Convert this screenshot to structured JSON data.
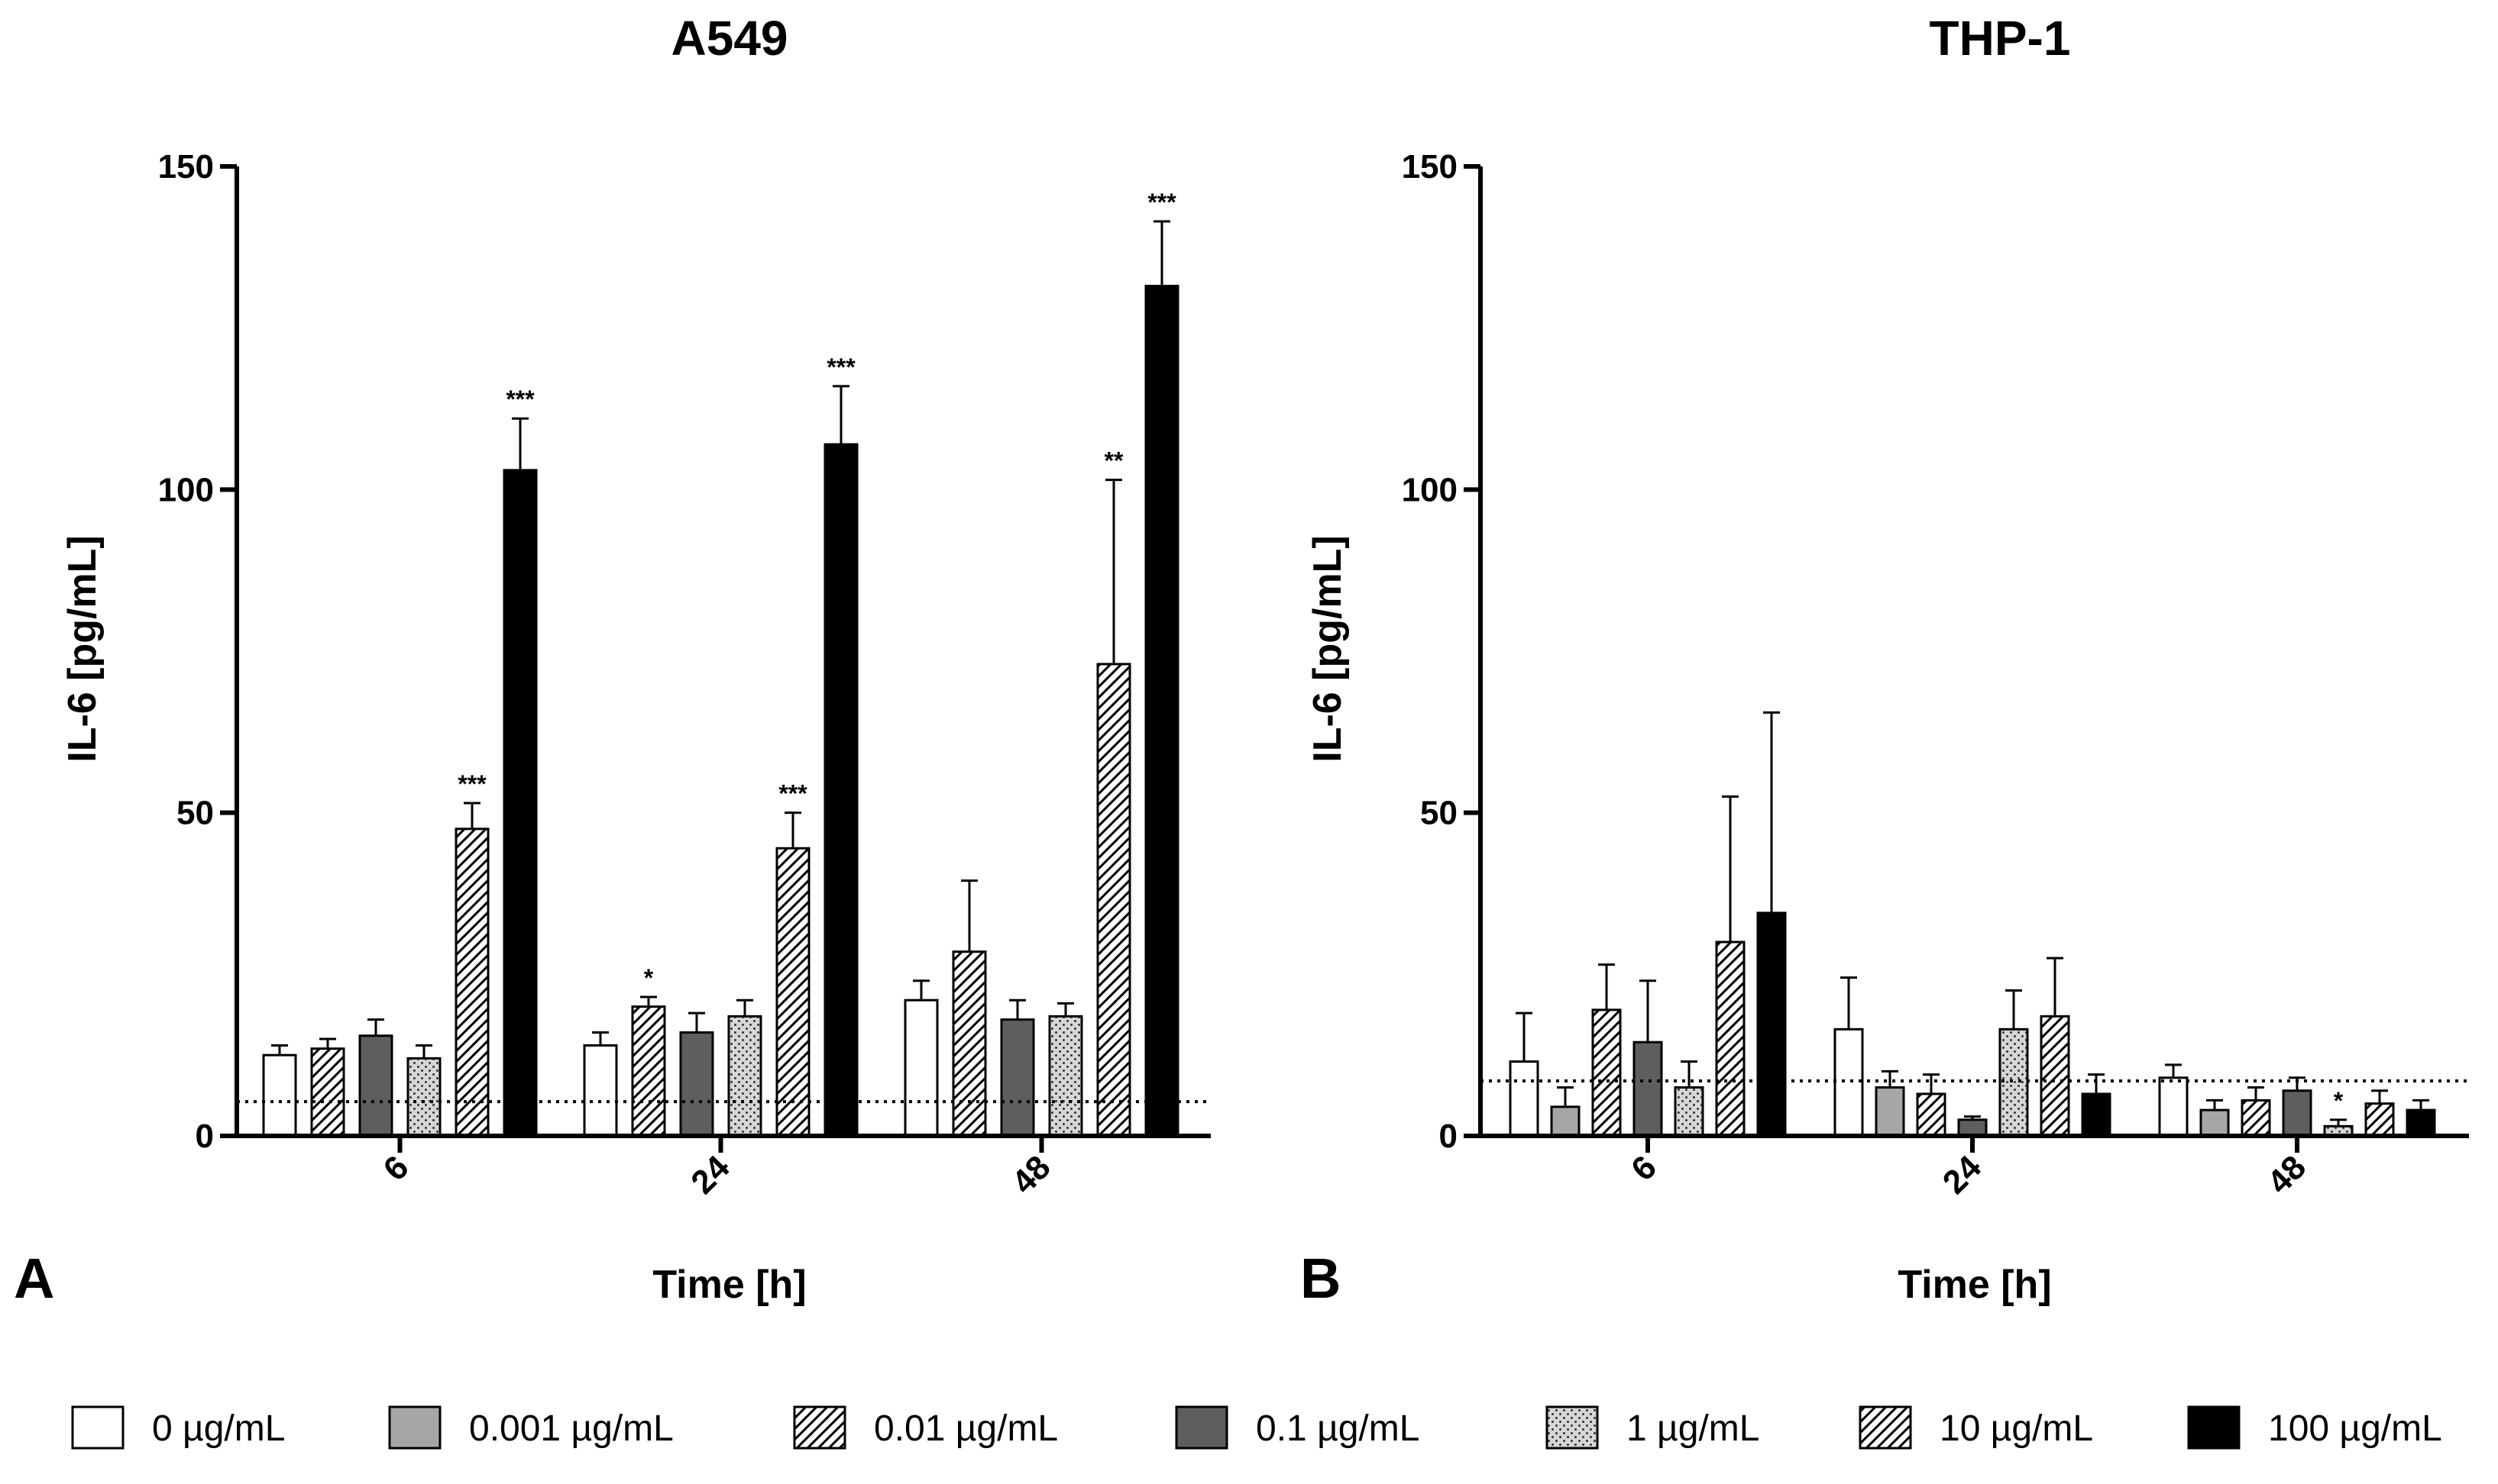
{
  "chart_data": [
    {
      "type": "bar",
      "panel_letter": "A",
      "title": "A549",
      "xlabel": "Time [h]",
      "ylabel": "IL-6 [pg/mL]",
      "ylim": [
        0,
        150
      ],
      "yticks": [
        0,
        50,
        100,
        150
      ],
      "categories": [
        "6",
        "24",
        "48"
      ],
      "reference_line": 5.3,
      "series": [
        {
          "name": "0 µg/mL",
          "values": [
            12.5,
            14,
            21
          ],
          "errors": [
            1.5,
            2,
            3
          ]
        },
        {
          "name": "0.01 µg/mL",
          "values": [
            13.5,
            20,
            28.5
          ],
          "errors": [
            1.5,
            1.5,
            11
          ]
        },
        {
          "name": "0.1 µg/mL",
          "values": [
            15.5,
            16,
            18
          ],
          "errors": [
            2.5,
            3,
            3
          ]
        },
        {
          "name": "1 µg/mL",
          "values": [
            12,
            18.5,
            18.5
          ],
          "errors": [
            2,
            2.5,
            2
          ]
        },
        {
          "name": "10 µg/mL",
          "values": [
            47.5,
            44.5,
            73
          ],
          "errors": [
            4,
            5.5,
            28.5
          ],
          "significance": [
            "***",
            "***",
            "**"
          ]
        },
        {
          "name": "100 µg/mL",
          "values": [
            103,
            107,
            131.5
          ],
          "errors": [
            8,
            9,
            10
          ],
          "significance": [
            "***",
            "***",
            "***"
          ]
        }
      ],
      "significance_extra": [
        {
          "category": "24",
          "series": "0.01 µg/mL",
          "label": "*"
        }
      ]
    },
    {
      "type": "bar",
      "panel_letter": "B",
      "title": "THP-1",
      "xlabel": "Time [h]",
      "ylabel": "IL-6 [pg/mL]",
      "ylim": [
        0,
        150
      ],
      "yticks": [
        0,
        50,
        100,
        150
      ],
      "categories": [
        "6",
        "24",
        "48"
      ],
      "reference_line": 8.5,
      "series": [
        {
          "name": "0 µg/mL",
          "values": [
            11.5,
            16.5,
            9
          ],
          "errors": [
            7.5,
            8,
            2
          ]
        },
        {
          "name": "0.001 µg/mL",
          "values": [
            4.5,
            7.5,
            4
          ],
          "errors": [
            3,
            2.5,
            1.5
          ]
        },
        {
          "name": "0.01 µg/mL",
          "values": [
            19.5,
            6.5,
            5.5
          ],
          "errors": [
            7,
            3,
            2
          ]
        },
        {
          "name": "0.1 µg/mL",
          "values": [
            14.5,
            2.5,
            7
          ],
          "errors": [
            9.5,
            0.5,
            2
          ]
        },
        {
          "name": "1 µg/mL",
          "values": [
            7.5,
            16.5,
            1.5
          ],
          "errors": [
            4,
            6,
            1
          ]
        },
        {
          "name": "10 µg/mL",
          "values": [
            30,
            18.5,
            5
          ],
          "errors": [
            22.5,
            9,
            2
          ]
        },
        {
          "name": "100 µg/mL",
          "values": [
            34.5,
            6.5,
            4
          ],
          "errors": [
            31,
            3,
            1.5
          ]
        }
      ],
      "significance_extra": [
        {
          "category": "48",
          "series": "1 µg/mL",
          "label": "*"
        }
      ]
    }
  ],
  "legend": [
    {
      "label": "0 µg/mL",
      "style": "white"
    },
    {
      "label": "0.001 µg/mL",
      "style": "lightgray"
    },
    {
      "label": "0.01 µg/mL",
      "style": "hatch"
    },
    {
      "label": "0.1 µg/mL",
      "style": "darkgray"
    },
    {
      "label": "1 µg/mL",
      "style": "dots"
    },
    {
      "label": "10 µg/mL",
      "style": "hatch"
    },
    {
      "label": "100 µg/mL",
      "style": "black"
    }
  ],
  "styles": {
    "0 µg/mL": "white",
    "0.001 µg/mL": "lightgray",
    "0.01 µg/mL": "hatch",
    "0.1 µg/mL": "darkgray",
    "1 µg/mL": "dots",
    "10 µg/mL": "hatch",
    "100 µg/mL": "black"
  },
  "colors": {
    "lightgray": "#a6a6a6",
    "darkgray": "#5e5e5e",
    "black": "#000000",
    "white": "#ffffff",
    "dots_bg": "#d6d6d6"
  }
}
